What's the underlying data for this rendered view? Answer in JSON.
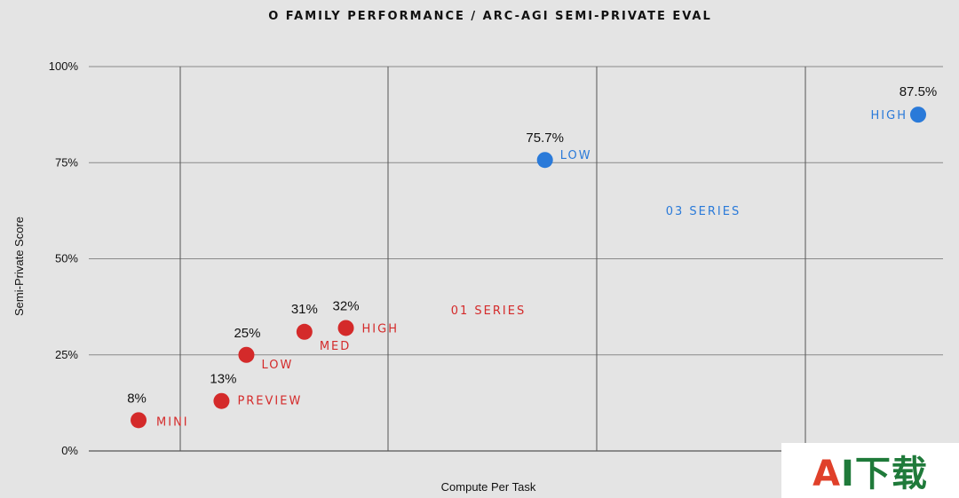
{
  "chart_data": {
    "type": "scatter",
    "title": "O FAMILY PERFORMANCE / ARC-AGI SEMI-PRIVATE EVAL",
    "xlabel": "Compute Per Task",
    "ylabel": "Semi-Private Score",
    "ylim": [
      0,
      100
    ],
    "yticks": [
      "0%",
      "25%",
      "50%",
      "75%",
      "100%"
    ],
    "grid": true,
    "series": [
      {
        "name": "01 SERIES",
        "color": "#d42a2a",
        "points": [
          {
            "x": 0.06,
            "y": 8,
            "value_label": "8%",
            "label": "MINI"
          },
          {
            "x": 0.16,
            "y": 13,
            "value_label": "13%",
            "label": "PREVIEW"
          },
          {
            "x": 0.19,
            "y": 25,
            "value_label": "25%",
            "label": "LOW"
          },
          {
            "x": 0.26,
            "y": 31,
            "value_label": "31%",
            "label": "MED"
          },
          {
            "x": 0.31,
            "y": 32,
            "value_label": "32%",
            "label": "HIGH"
          }
        ]
      },
      {
        "name": "03 SERIES",
        "color": "#2a7ad9",
        "points": [
          {
            "x": 0.55,
            "y": 75.7,
            "value_label": "75.7%",
            "label": "LOW"
          },
          {
            "x": 1.0,
            "y": 87.5,
            "value_label": "87.5%",
            "label": "HIGH"
          }
        ]
      }
    ]
  },
  "watermark": {
    "a": "A",
    "rest": "I下载"
  }
}
